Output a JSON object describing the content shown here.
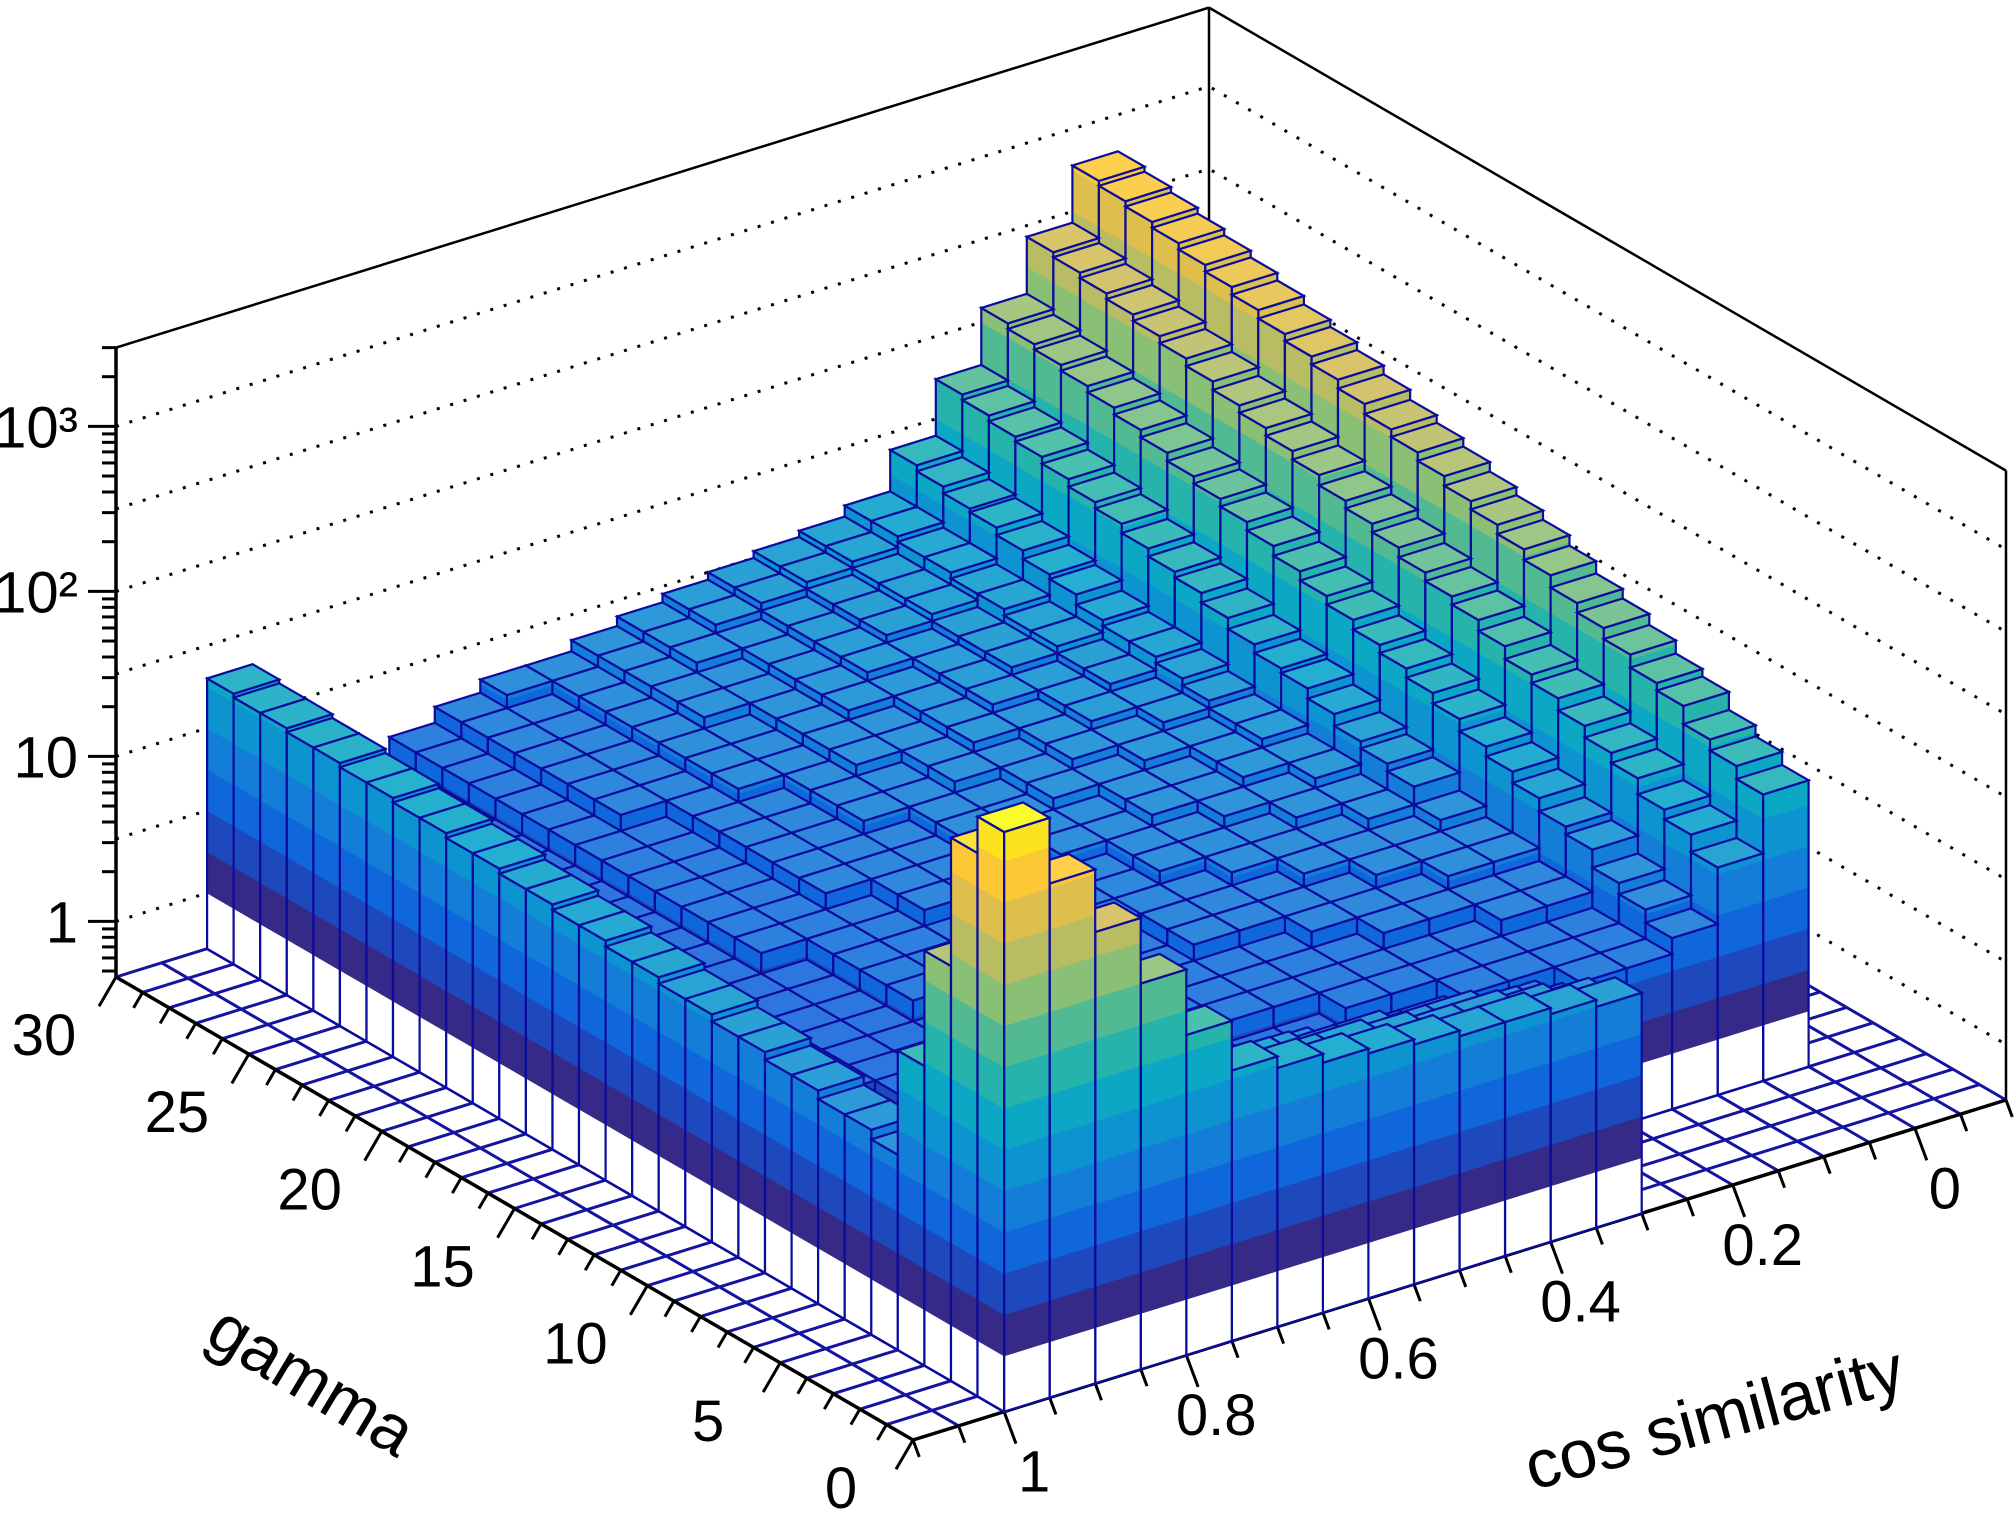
{
  "chart_data": {
    "type": "bar",
    "subtype": "lego-3d-histogram",
    "title": "",
    "xlabel": "cos similarity",
    "ylabel": "gamma",
    "zlabel": "",
    "xlim": [
      -0.1,
      1.1
    ],
    "ylim": [
      0,
      30
    ],
    "zlim": [
      0.46,
      3000
    ],
    "zscale": "log",
    "grid": true,
    "x_bin_width": 0.05,
    "x_first_bin": 0.0,
    "y_bin_width": 1,
    "y_first_bin": 0,
    "x_ticks": [
      {
        "value": 1,
        "label": "1"
      },
      {
        "value": 0.8,
        "label": "0.8"
      },
      {
        "value": 0.6,
        "label": "0.6"
      },
      {
        "value": 0.4,
        "label": "0.4"
      },
      {
        "value": 0.2,
        "label": "0.2"
      },
      {
        "value": 0,
        "label": "0"
      }
    ],
    "y_ticks": [
      {
        "value": 0,
        "label": "0"
      },
      {
        "value": 5,
        "label": "5"
      },
      {
        "value": 10,
        "label": "10"
      },
      {
        "value": 15,
        "label": "15"
      },
      {
        "value": 20,
        "label": "20"
      },
      {
        "value": 25,
        "label": "25"
      },
      {
        "value": 30,
        "label": "30"
      }
    ],
    "z_ticks": [
      {
        "value": 1,
        "label": "1"
      },
      {
        "value": 10,
        "label": "10"
      },
      {
        "value": 100,
        "label": "10²"
      },
      {
        "value": 1000,
        "label": "10³"
      }
    ],
    "values_layout": "rows = gamma bins 0..29, columns = cos bins 0.00..0.95 (step 0.05)",
    "values": [
      [
        0,
        0,
        0,
        0,
        0,
        0,
        10,
        11,
        12,
        12,
        13,
        14,
        15,
        17,
        20,
        40,
        100,
        250,
        600,
        1500
      ],
      [
        0,
        0,
        0,
        0,
        0,
        0,
        8,
        9,
        10,
        10,
        11,
        12,
        12,
        14,
        16,
        25,
        60,
        150,
        400,
        900
      ],
      [
        0,
        0,
        0,
        0,
        0,
        0,
        6,
        7,
        8,
        8,
        9,
        9,
        10,
        10,
        12,
        14,
        20,
        40,
        80,
        150
      ],
      [
        0,
        0,
        0,
        0,
        0,
        0,
        5,
        5,
        6,
        6,
        6,
        7,
        7,
        7,
        8,
        8,
        10,
        12,
        20,
        30
      ],
      [
        25,
        11,
        5,
        4,
        4,
        3,
        3,
        3,
        3,
        3,
        3,
        3,
        3,
        3,
        3,
        2,
        2,
        2,
        2,
        7
      ],
      [
        30,
        14,
        6,
        4,
        4,
        4,
        4,
        3,
        3,
        3,
        3,
        3,
        3,
        3,
        3,
        2,
        2,
        2,
        2,
        8
      ],
      [
        35,
        16,
        7,
        4,
        4,
        4,
        4,
        4,
        4,
        3,
        3,
        3,
        3,
        3,
        3,
        3,
        2,
        2,
        2,
        8
      ],
      [
        45,
        20,
        9,
        5,
        5,
        4,
        4,
        4,
        4,
        4,
        4,
        3,
        3,
        3,
        3,
        3,
        3,
        2,
        2,
        9
      ],
      [
        50,
        23,
        10,
        5,
        5,
        5,
        5,
        4,
        4,
        4,
        4,
        4,
        3,
        3,
        3,
        3,
        3,
        2,
        2,
        9
      ],
      [
        60,
        27,
        12,
        6,
        6,
        5,
        5,
        5,
        4,
        4,
        4,
        4,
        4,
        3,
        3,
        3,
        3,
        2,
        2,
        10
      ],
      [
        70,
        32,
        14,
        6,
        6,
        6,
        5,
        5,
        5,
        5,
        4,
        4,
        4,
        4,
        3,
        3,
        3,
        3,
        2,
        10
      ],
      [
        80,
        36,
        16,
        7,
        6,
        6,
        6,
        5,
        5,
        5,
        4,
        4,
        4,
        4,
        3,
        3,
        3,
        3,
        2,
        11
      ],
      [
        95,
        43,
        19,
        9,
        7,
        6,
        6,
        6,
        5,
        5,
        5,
        4,
        4,
        4,
        4,
        3,
        3,
        3,
        2,
        11
      ],
      [
        110,
        50,
        22,
        10,
        7,
        7,
        6,
        6,
        6,
        5,
        5,
        5,
        4,
        4,
        4,
        3,
        3,
        3,
        2,
        12
      ],
      [
        125,
        56,
        25,
        11,
        8,
        7,
        7,
        6,
        6,
        5,
        5,
        5,
        4,
        4,
        4,
        3,
        3,
        3,
        2,
        12
      ],
      [
        140,
        63,
        28,
        13,
        8,
        8,
        7,
        7,
        6,
        6,
        5,
        5,
        5,
        4,
        4,
        3,
        3,
        3,
        2,
        13
      ],
      [
        160,
        72,
        32,
        15,
        9,
        8,
        7,
        7,
        6,
        6,
        6,
        5,
        5,
        4,
        4,
        4,
        3,
        3,
        2,
        13
      ],
      [
        180,
        81,
        36,
        16,
        9,
        8,
        8,
        7,
        7,
        6,
        6,
        5,
        5,
        5,
        4,
        4,
        3,
        3,
        2,
        14
      ],
      [
        200,
        90,
        41,
        18,
        10,
        9,
        8,
        8,
        7,
        6,
        6,
        5,
        5,
        5,
        4,
        4,
        3,
        3,
        2,
        14
      ],
      [
        230,
        104,
        47,
        21,
        11,
        9,
        9,
        8,
        7,
        7,
        6,
        6,
        5,
        5,
        4,
        4,
        3,
        3,
        2,
        15
      ],
      [
        260,
        117,
        53,
        24,
        12,
        10,
        9,
        8,
        8,
        7,
        6,
        6,
        5,
        5,
        4,
        4,
        3,
        3,
        2,
        15
      ],
      [
        290,
        130,
        59,
        26,
        12,
        10,
        9,
        9,
        8,
        7,
        7,
        6,
        5,
        5,
        4,
        4,
        3,
        3,
        2,
        16
      ],
      [
        320,
        144,
        65,
        29,
        13,
        11,
        10,
        9,
        8,
        7,
        7,
        6,
        6,
        5,
        4,
        4,
        3,
        3,
        2,
        16
      ],
      [
        360,
        162,
        73,
        33,
        15,
        11,
        10,
        9,
        8,
        8,
        7,
        6,
        6,
        5,
        5,
        4,
        3,
        3,
        2,
        17
      ],
      [
        400,
        180,
        81,
        36,
        16,
        12,
        10,
        9,
        9,
        8,
        7,
        6,
        6,
        5,
        5,
        4,
        3,
        3,
        2,
        17
      ],
      [
        440,
        198,
        89,
        40,
        18,
        12,
        11,
        10,
        9,
        8,
        7,
        7,
        6,
        5,
        5,
        4,
        3,
        3,
        2,
        18
      ],
      [
        480,
        216,
        97,
        44,
        20,
        13,
        11,
        10,
        9,
        8,
        7,
        7,
        6,
        5,
        5,
        4,
        3,
        3,
        2,
        18
      ],
      [
        520,
        234,
        105,
        47,
        21,
        13,
        11,
        10,
        9,
        8,
        8,
        7,
        6,
        5,
        5,
        4,
        3,
        3,
        2,
        19
      ],
      [
        560,
        252,
        113,
        51,
        23,
        14,
        12,
        11,
        10,
        9,
        8,
        7,
        6,
        5,
        5,
        4,
        3,
        3,
        2,
        19
      ],
      [
        600,
        270,
        122,
        55,
        25,
        14,
        12,
        11,
        10,
        9,
        8,
        7,
        6,
        6,
        5,
        4,
        3,
        3,
        2,
        20
      ]
    ],
    "palette": [
      "#352a87",
      "#0f5cdd",
      "#1481d6",
      "#06a4ca",
      "#2eb7a4",
      "#87bf77",
      "#d1bb59",
      "#fec832",
      "#f9fb0e"
    ],
    "edge_color": "#0b0b9c",
    "floor_grid_color": "#1414a0"
  }
}
